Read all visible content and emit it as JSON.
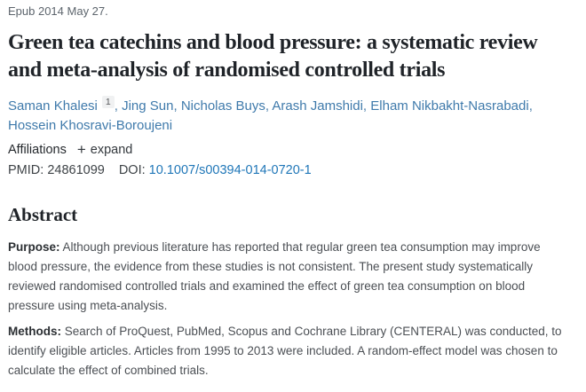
{
  "article": {
    "epub_line": "Epub 2014 May 27.",
    "title": "Green tea catechins and blood pressure: a systematic review and meta-analysis of randomised controlled trials",
    "authors": [
      {
        "name": "Saman Khalesi",
        "affiliation_sup": "1"
      },
      {
        "name": "Jing Sun"
      },
      {
        "name": "Nicholas Buys"
      },
      {
        "name": "Arash Jamshidi"
      },
      {
        "name": "Elham Nikbakht-Nasrabadi"
      },
      {
        "name": "Hossein Khosravi-Boroujeni"
      }
    ],
    "author_separator": ",",
    "affiliations": {
      "label": "Affiliations",
      "expand_icon": "+",
      "expand_label": "expand"
    },
    "identifiers": {
      "pmid_label": "PMID:",
      "pmid_value": "24861099",
      "doi_label": "DOI:",
      "doi_value": "10.1007/s00394-014-0720-1"
    },
    "abstract": {
      "heading": "Abstract",
      "sections": [
        {
          "label": "Purpose:",
          "text": "Although previous literature has reported that regular green tea consumption may improve blood pressure, the evidence from these studies is not consistent. The present study systematically reviewed randomised controlled trials and examined the effect of green tea consumption on blood pressure using meta-analysis."
        },
        {
          "label": "Methods:",
          "text": "Search of ProQuest, PubMed, Scopus and Cochrane Library (CENTERAL) was conducted, to identify eligible articles. Articles from 1995 to 2013 were included. A random-effect model was chosen to calculate the effect of combined trials."
        }
      ]
    },
    "colors": {
      "author_link": "#3f7aab",
      "doi_link": "#2077b8",
      "heading_text": "#1f2328",
      "body_text": "#4b4f54",
      "muted_text": "#5d656d",
      "affiliation_badge_bg": "#f0f1f2"
    }
  }
}
